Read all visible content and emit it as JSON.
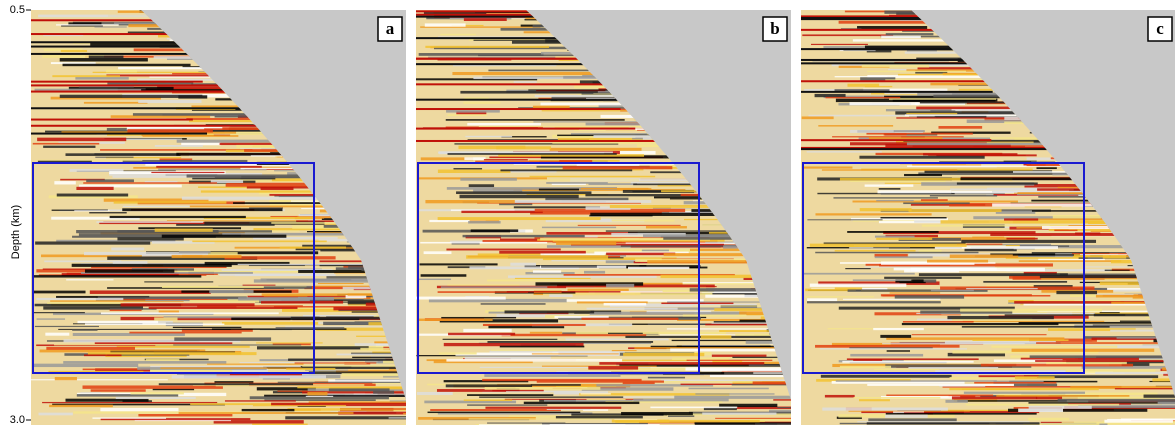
{
  "axis": {
    "label": "Depth (km)",
    "ticks": [
      {
        "value": 0.5,
        "label": "0.5"
      },
      {
        "value": 3,
        "label": "3.0"
      }
    ]
  },
  "panels": [
    {
      "label": "a"
    },
    {
      "label": "b"
    },
    {
      "label": "c"
    }
  ]
}
